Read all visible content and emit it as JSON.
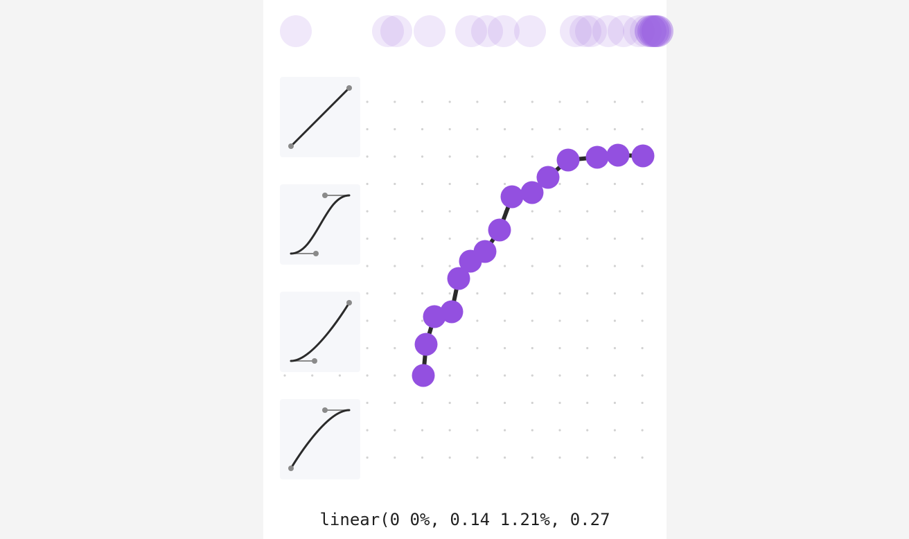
{
  "accent_color": "#9350e0",
  "curve_color": "#2a2a2a",
  "presets": [
    {
      "name": "linear",
      "icon": "linear-curve-icon"
    },
    {
      "name": "ease-in-out",
      "icon": "ease-in-out-curve-icon"
    },
    {
      "name": "ease-in",
      "icon": "ease-in-curve-icon"
    },
    {
      "name": "ease-out",
      "icon": "ease-out-curve-icon"
    }
  ],
  "output": {
    "css_value": "linear(0 0%, 0.14 1.21%, 0.27"
  }
}
